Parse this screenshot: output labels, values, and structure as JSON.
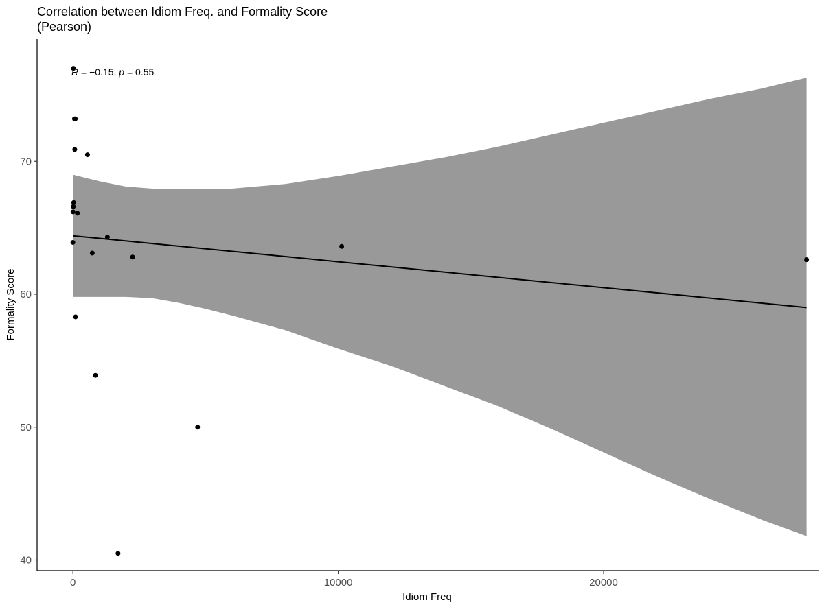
{
  "chart_data": {
    "type": "scatter",
    "title": "Correlation between Idiom Freq. and Formality Score",
    "subtitle": "(Pearson)",
    "xlabel": "Idiom Freq",
    "ylabel": "Formality Score",
    "xlim": [
      -1350,
      28100
    ],
    "ylim": [
      39.2,
      79.2
    ],
    "x_ticks": [
      0,
      10000,
      20000
    ],
    "y_ticks": [
      40,
      50,
      60,
      70
    ],
    "grid": false,
    "stat_label": {
      "r_symbol": "R",
      "r_value": " = −0.15, ",
      "p_symbol": "p",
      "p_value": " = 0.55"
    },
    "points": [
      {
        "x": 20,
        "y": 77.0
      },
      {
        "x": 60,
        "y": 73.2
      },
      {
        "x": 90,
        "y": 73.2
      },
      {
        "x": 70,
        "y": 70.9
      },
      {
        "x": 550,
        "y": 70.5
      },
      {
        "x": 30,
        "y": 66.9
      },
      {
        "x": 15,
        "y": 66.6
      },
      {
        "x": 5,
        "y": 66.2
      },
      {
        "x": 170,
        "y": 66.1
      },
      {
        "x": 1300,
        "y": 64.3
      },
      {
        "x": 0,
        "y": 63.9
      },
      {
        "x": 730,
        "y": 63.1
      },
      {
        "x": 10130,
        "y": 63.6
      },
      {
        "x": 2250,
        "y": 62.8
      },
      {
        "x": 27650,
        "y": 62.6
      },
      {
        "x": 100,
        "y": 58.3
      },
      {
        "x": 850,
        "y": 53.9
      },
      {
        "x": 4700,
        "y": 50.0
      },
      {
        "x": 1700,
        "y": 40.5
      }
    ],
    "fit_line": {
      "x": [
        0,
        27650
      ],
      "y": [
        64.4,
        59.0
      ]
    },
    "confidence_band": {
      "x": [
        0,
        1000,
        2000,
        3000,
        4000,
        5000,
        6000,
        8000,
        10000,
        12000,
        14000,
        16000,
        18000,
        20000,
        22000,
        24000,
        26000,
        27650
      ],
      "upper": [
        69.0,
        68.5,
        68.1,
        67.95,
        67.9,
        67.92,
        67.95,
        68.3,
        68.9,
        69.6,
        70.3,
        71.1,
        72.0,
        72.9,
        73.8,
        74.7,
        75.5,
        76.3
      ],
      "lower": [
        59.8,
        59.8,
        59.8,
        59.7,
        59.35,
        58.9,
        58.4,
        57.3,
        55.9,
        54.6,
        53.1,
        51.6,
        49.9,
        48.1,
        46.3,
        44.6,
        43.0,
        41.8
      ]
    },
    "colors": {
      "points": "#000000",
      "line": "#000000",
      "band": "#999999",
      "axis": "#000000",
      "tick_labels": "#4d4d4d"
    }
  }
}
